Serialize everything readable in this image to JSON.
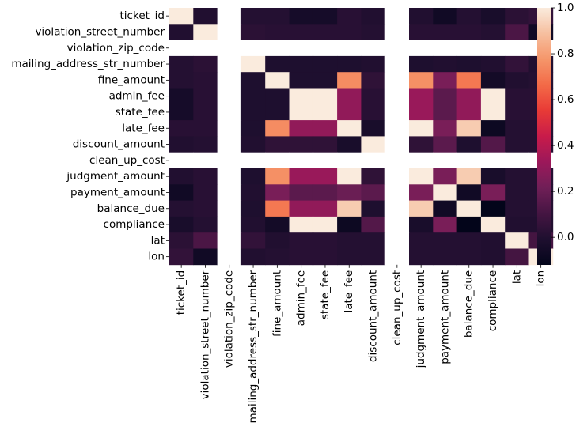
{
  "chart_data": {
    "type": "heatmap",
    "title": "",
    "xlabel": "",
    "ylabel": "",
    "labels": [
      "ticket_id",
      "violation_street_number",
      "violation_zip_code",
      "mailing_address_str_number",
      "fine_amount",
      "admin_fee",
      "state_fee",
      "late_fee",
      "discount_amount",
      "clean_up_cost",
      "judgment_amount",
      "payment_amount",
      "balance_due",
      "compliance",
      "lat",
      "lon"
    ],
    "colormap": "rocket",
    "colorbar": {
      "min": -0.12,
      "max": 1.0,
      "ticks": [
        0.0,
        0.2,
        0.4,
        0.6,
        0.8,
        1.0
      ],
      "tick_labels": [
        "0.0",
        "0.2",
        "0.4",
        "0.6",
        "0.8",
        "1.0"
      ]
    },
    "missing_color": "#ffffff",
    "matrix": [
      [
        1.0,
        0.0,
        null,
        0.01,
        0.01,
        -0.04,
        -0.04,
        0.02,
        0.0,
        null,
        0.0,
        -0.06,
        0.01,
        -0.03,
        0.03,
        0.05
      ],
      [
        0.0,
        1.0,
        null,
        0.03,
        0.02,
        0.02,
        0.02,
        0.02,
        0.01,
        null,
        0.02,
        0.02,
        0.02,
        0.01,
        0.12,
        -0.06
      ],
      [
        null,
        null,
        null,
        null,
        null,
        null,
        null,
        null,
        null,
        null,
        null,
        null,
        null,
        null,
        null,
        null
      ],
      [
        0.01,
        0.03,
        null,
        1.0,
        -0.01,
        -0.01,
        -0.01,
        -0.01,
        0.0,
        null,
        -0.01,
        0.0,
        -0.01,
        0.0,
        0.05,
        0.0
      ],
      [
        0.01,
        0.02,
        null,
        -0.01,
        1.0,
        -0.01,
        -0.01,
        0.75,
        0.04,
        null,
        0.76,
        0.24,
        0.7,
        -0.05,
        0.0,
        0.01
      ],
      [
        -0.04,
        0.02,
        null,
        -0.01,
        -0.01,
        1.0,
        1.0,
        0.3,
        0.02,
        null,
        0.32,
        0.16,
        0.3,
        1.0,
        0.02,
        0.02
      ],
      [
        -0.04,
        0.02,
        null,
        -0.01,
        -0.01,
        1.0,
        1.0,
        0.3,
        0.02,
        null,
        0.32,
        0.16,
        0.3,
        1.0,
        0.02,
        0.02
      ],
      [
        0.02,
        0.02,
        null,
        -0.01,
        0.75,
        0.3,
        0.3,
        1.0,
        -0.03,
        null,
        1.0,
        0.24,
        0.92,
        -0.08,
        0.01,
        0.01
      ],
      [
        0.0,
        0.01,
        null,
        0.0,
        0.04,
        0.04,
        0.04,
        -0.03,
        1.0,
        null,
        0.04,
        0.16,
        -0.01,
        0.14,
        0.01,
        0.01
      ],
      [
        null,
        null,
        null,
        null,
        null,
        null,
        null,
        null,
        null,
        null,
        null,
        null,
        null,
        null,
        null,
        null
      ],
      [
        0.0,
        0.02,
        null,
        -0.01,
        0.76,
        0.32,
        0.32,
        1.0,
        0.04,
        null,
        1.0,
        0.24,
        0.92,
        -0.03,
        0.01,
        0.01
      ],
      [
        -0.06,
        0.02,
        null,
        0.0,
        0.24,
        0.16,
        0.16,
        0.2,
        0.16,
        null,
        0.24,
        1.0,
        -0.06,
        0.24,
        0.01,
        0.01
      ],
      [
        0.01,
        0.02,
        null,
        -0.01,
        0.7,
        0.3,
        0.3,
        0.92,
        -0.01,
        null,
        0.92,
        -0.06,
        1.0,
        -0.12,
        0.01,
        0.01
      ],
      [
        -0.03,
        0.01,
        null,
        0.0,
        -0.05,
        1.0,
        1.0,
        -0.08,
        0.14,
        null,
        -0.03,
        0.24,
        -0.12,
        1.0,
        0.0,
        0.0
      ],
      [
        0.03,
        0.12,
        null,
        0.05,
        0.0,
        0.02,
        0.02,
        0.01,
        0.01,
        null,
        0.01,
        0.01,
        0.01,
        0.0,
        1.0,
        0.1
      ],
      [
        0.05,
        -0.06,
        null,
        0.0,
        0.01,
        0.02,
        0.02,
        0.01,
        0.01,
        null,
        0.01,
        0.01,
        0.01,
        0.0,
        0.1,
        1.0
      ]
    ]
  }
}
